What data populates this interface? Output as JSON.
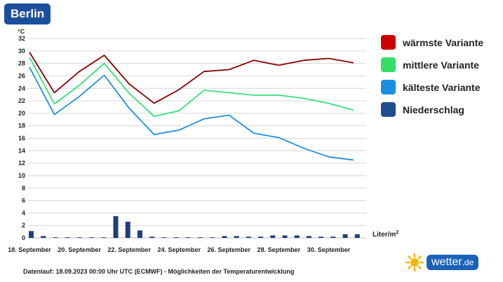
{
  "header": {
    "city": "Berlin"
  },
  "legend": [
    {
      "label": "wärmste Variante",
      "color": "#cc0000"
    },
    {
      "label": "mittlere Variante",
      "color": "#33dd66"
    },
    {
      "label": "kälteste Variante",
      "color": "#1a8fe0"
    },
    {
      "label": "Niederschlag",
      "color": "#1f4e8c"
    }
  ],
  "footer": {
    "note": "Datenlauf: 18.09.2023 00:00 Uhr UTC (ECMWF) - Möglichkeiten der Temperaturentwicklung"
  },
  "brand": {
    "name": "wetter",
    "tld": ".de",
    "icon": "sun-icon"
  },
  "chart_data": {
    "type": "line",
    "ylabel": "°C",
    "ylim": [
      0,
      32
    ],
    "yticks": [
      0,
      2,
      4,
      6,
      8,
      10,
      12,
      14,
      16,
      18,
      20,
      22,
      24,
      26,
      28,
      30,
      32
    ],
    "y2label": "Liter/m²",
    "grid": true,
    "legend_position": "right",
    "x_tick_labels": [
      "18. September",
      "20. September",
      "22. September",
      "24. September",
      "26. September",
      "28. September",
      "30. September"
    ],
    "series": [
      {
        "name": "wärmste Variante",
        "color": "#8b0000",
        "values": [
          29.8,
          23.3,
          26.7,
          29.3,
          24.7,
          21.6,
          23.8,
          26.7,
          27.0,
          28.5,
          27.7,
          28.5,
          28.8,
          28.1
        ]
      },
      {
        "name": "mittlere Variante",
        "color": "#33e27a",
        "values": [
          29.0,
          21.5,
          24.5,
          28.0,
          23.2,
          19.5,
          20.4,
          23.7,
          23.3,
          22.9,
          22.9,
          22.4,
          21.6,
          20.5
        ]
      },
      {
        "name": "kälteste Variante",
        "color": "#1f8fdf",
        "values": [
          27.4,
          19.8,
          22.7,
          26.1,
          20.8,
          16.6,
          17.3,
          19.1,
          19.7,
          16.8,
          16.1,
          14.4,
          13.0,
          12.5
        ]
      }
    ],
    "precipitation": {
      "name": "Niederschlag",
      "color": "#1f3f7a",
      "values": [
        1.1,
        0.3,
        0.1,
        0.1,
        0.1,
        0.1,
        0.1,
        3.5,
        2.6,
        1.2,
        0.2,
        0.1,
        0.1,
        0.1,
        0.1,
        0.1,
        0.3,
        0.3,
        0.2,
        0.2,
        0.4,
        0.4,
        0.4,
        0.3,
        0.2,
        0.2,
        0.6,
        0.6
      ]
    }
  }
}
